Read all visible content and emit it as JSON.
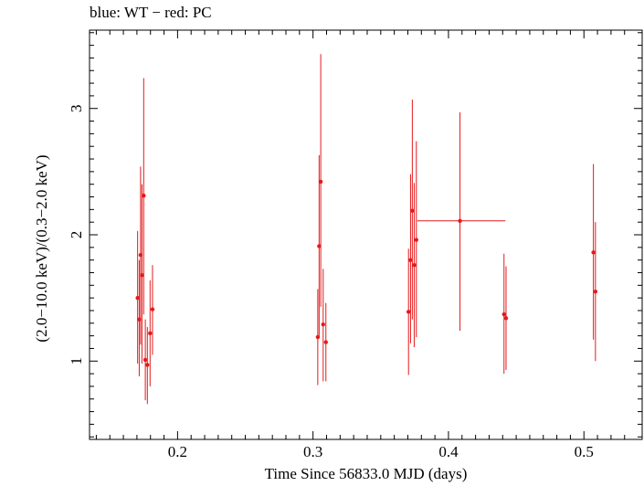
{
  "chart_data": {
    "type": "scatter",
    "title": "blue: WT − red: PC",
    "xlabel": "Time Since 56833.0 MJD (days)",
    "ylabel": "(2.0−10.0 keV)/(0.3−2.0 keV)",
    "xlim": [
      0.135,
      0.543
    ],
    "ylim": [
      0.38,
      3.62
    ],
    "xticks": [
      0.2,
      0.3,
      0.4,
      0.5
    ],
    "xtick_labels": [
      "0.2",
      "0.3",
      "0.4",
      "0.5"
    ],
    "yticks": [
      1,
      2,
      3
    ],
    "ytick_labels": [
      "1",
      "2",
      "3"
    ],
    "grid": false,
    "series": [
      {
        "name": "PC",
        "color": "#e41a1c",
        "points": [
          {
            "x": 0.1705,
            "y": 1.5,
            "ylo": 0.98,
            "yhi": 2.03
          },
          {
            "x": 0.1717,
            "y": 1.33,
            "ylo": 0.88,
            "yhi": 1.8
          },
          {
            "x": 0.1727,
            "y": 1.84,
            "ylo": 1.13,
            "yhi": 2.54
          },
          {
            "x": 0.1737,
            "y": 1.68,
            "ylo": 0.98,
            "yhi": 2.4
          },
          {
            "x": 0.175,
            "y": 2.31,
            "ylo": 1.37,
            "yhi": 3.24
          },
          {
            "x": 0.1762,
            "y": 1.01,
            "ylo": 0.69,
            "yhi": 1.33
          },
          {
            "x": 0.1777,
            "y": 0.97,
            "ylo": 0.66,
            "yhi": 1.27
          },
          {
            "x": 0.1797,
            "y": 1.22,
            "ylo": 0.8,
            "yhi": 1.64
          },
          {
            "x": 0.1815,
            "y": 1.41,
            "ylo": 1.05,
            "yhi": 1.76
          },
          {
            "x": 0.3035,
            "y": 1.19,
            "ylo": 0.81,
            "yhi": 1.57
          },
          {
            "x": 0.3045,
            "y": 1.91,
            "ylo": 1.18,
            "yhi": 2.63
          },
          {
            "x": 0.3057,
            "y": 2.42,
            "ylo": 1.43,
            "yhi": 3.43
          },
          {
            "x": 0.3075,
            "y": 1.29,
            "ylo": 0.84,
            "yhi": 1.73
          },
          {
            "x": 0.3095,
            "y": 1.15,
            "ylo": 0.84,
            "yhi": 1.46
          },
          {
            "x": 0.3705,
            "y": 1.39,
            "ylo": 0.89,
            "yhi": 1.89
          },
          {
            "x": 0.372,
            "y": 1.8,
            "ylo": 1.14,
            "yhi": 2.48
          },
          {
            "x": 0.3733,
            "y": 2.19,
            "ylo": 1.33,
            "yhi": 3.07
          },
          {
            "x": 0.3747,
            "y": 1.76,
            "ylo": 1.11,
            "yhi": 2.41
          },
          {
            "x": 0.3763,
            "y": 1.96,
            "ylo": 1.19,
            "yhi": 2.74
          },
          {
            "x": 0.4085,
            "y": 2.11,
            "ylo": 1.24,
            "yhi": 2.97,
            "xlo": 0.377,
            "xhi": 0.442
          },
          {
            "x": 0.441,
            "y": 1.37,
            "ylo": 0.9,
            "yhi": 1.85
          },
          {
            "x": 0.4425,
            "y": 1.34,
            "ylo": 0.93,
            "yhi": 1.75
          },
          {
            "x": 0.507,
            "y": 1.86,
            "ylo": 1.17,
            "yhi": 2.56
          },
          {
            "x": 0.5085,
            "y": 1.55,
            "ylo": 1.0,
            "yhi": 2.1
          }
        ]
      }
    ]
  }
}
